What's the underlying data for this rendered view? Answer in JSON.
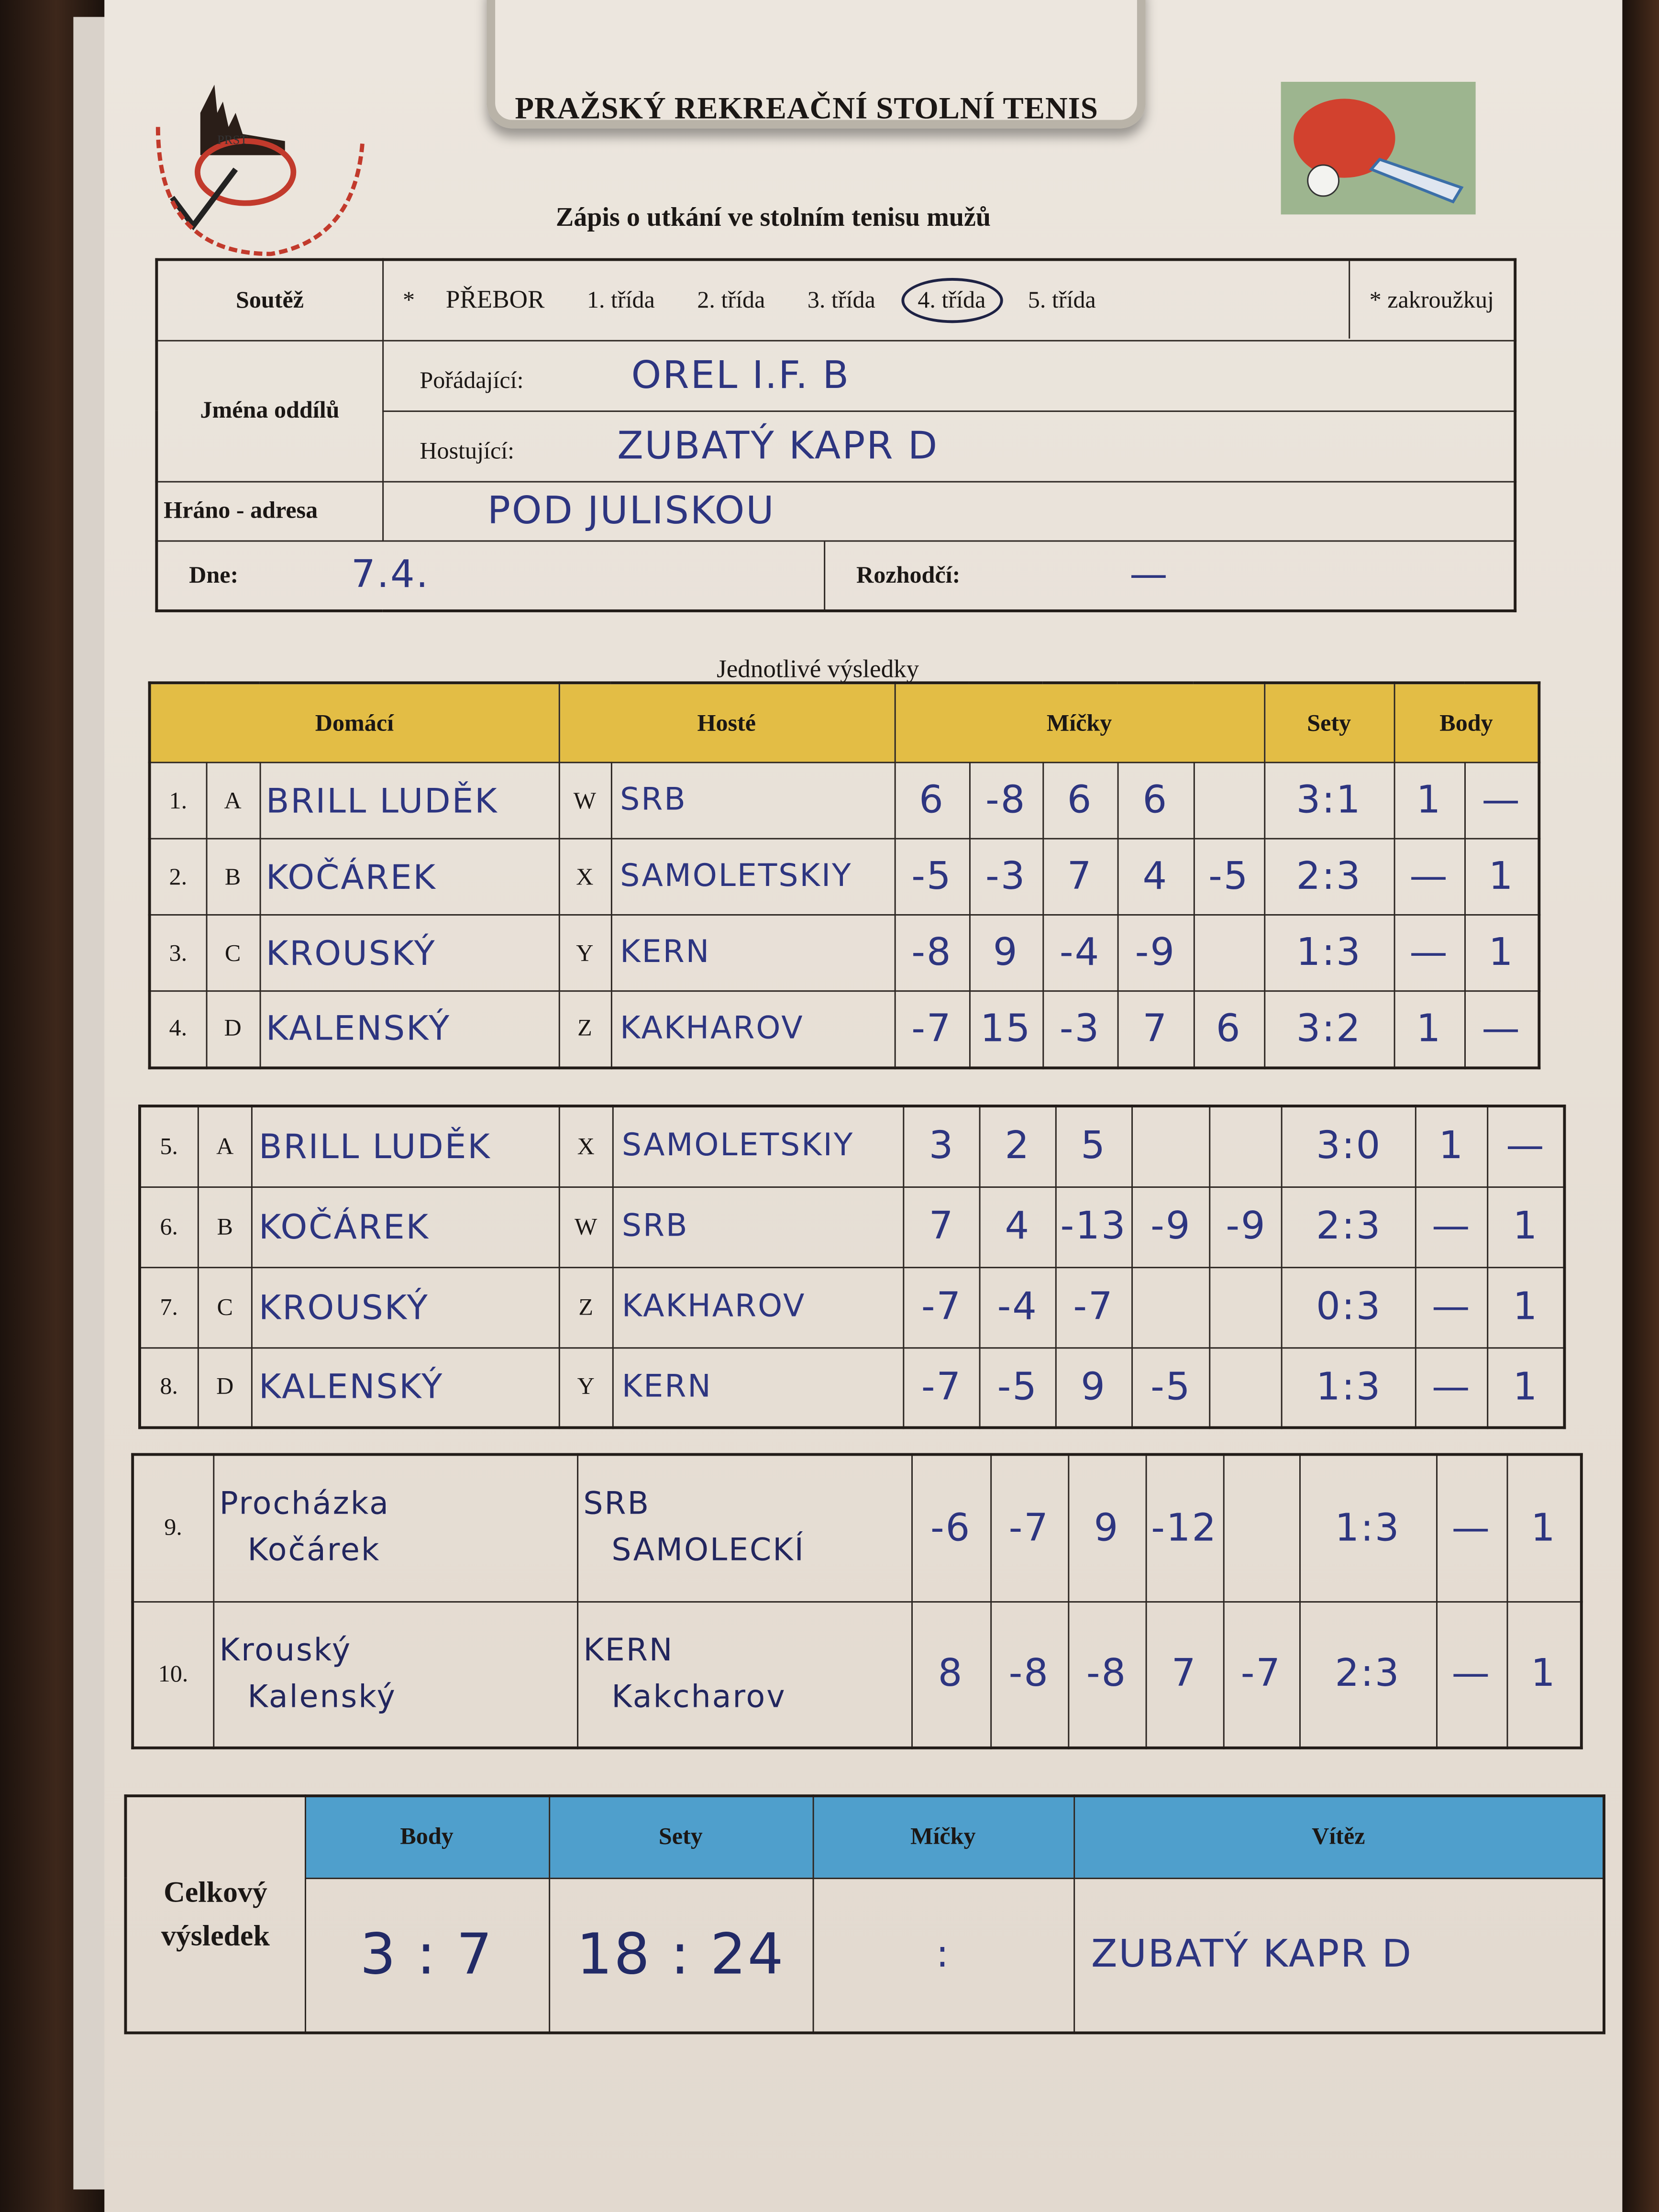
{
  "header": {
    "title": "PRAŽSKÝ REKREAČNÍ STOLNÍ TENIS",
    "subtitle": "Zápis o utkání ve stolním tenisu mužů",
    "logo_text": "PRST PRAŽSKÝ REKREAČNÍ STOLNÍ TENIS",
    "logo_colors": {
      "red": "#c23a2c",
      "green": "#4a7a3a"
    }
  },
  "info": {
    "competition_label": "Soutěž",
    "competition_star": "*",
    "options": [
      "PŘEBOR",
      "1. třída",
      "2. třída",
      "3. třída",
      "4. třída",
      "5. třída"
    ],
    "selected_option": "4. třída",
    "circle_note": "* zakroužkuj",
    "teams_label": "Jména oddílů",
    "home_label": "Pořádající:",
    "home_value": "OREL I.F. B",
    "guest_label": "Hostující:",
    "guest_value": "ZUBATÝ KAPR D",
    "venue_label": "Hráno - adresa",
    "venue_value": "POD JULISKOU",
    "date_label": "Dne:",
    "date_value": "7.4.",
    "referee_label": "Rozhodčí:",
    "referee_value": "—"
  },
  "results": {
    "section_title": "Jednotlivé výsledky",
    "headers": {
      "home": "Domácí",
      "guest": "Hosté",
      "balls": "Míčky",
      "sets": "Sety",
      "points": "Body"
    },
    "header_color": "#e3bd45",
    "block1": [
      {
        "no": "1.",
        "hl": "A",
        "home": "BRILL LUDĚK",
        "gl": "W",
        "guest": "SRB",
        "balls": [
          "6",
          "-8",
          "6",
          "6",
          ""
        ],
        "sets": "3:1",
        "hp": "1",
        "gp": "—"
      },
      {
        "no": "2.",
        "hl": "B",
        "home": "KOČÁREK",
        "gl": "X",
        "guest": "SAMOLETSKIY",
        "balls": [
          "-5",
          "-3",
          "7",
          "4",
          "-5"
        ],
        "sets": "2:3",
        "hp": "—",
        "gp": "1"
      },
      {
        "no": "3.",
        "hl": "C",
        "home": "KROUSKÝ",
        "gl": "Y",
        "guest": "KERN",
        "balls": [
          "-8",
          "9",
          "-4",
          "-9",
          ""
        ],
        "sets": "1:3",
        "hp": "—",
        "gp": "1"
      },
      {
        "no": "4.",
        "hl": "D",
        "home": "KALENSKÝ",
        "gl": "Z",
        "guest": "KAKHAROV",
        "balls": [
          "-7",
          "15",
          "-3",
          "7",
          "6"
        ],
        "sets": "3:2",
        "hp": "1",
        "gp": "—"
      }
    ],
    "block2": [
      {
        "no": "5.",
        "hl": "A",
        "home": "BRILL LUDĚK",
        "gl": "X",
        "guest": "SAMOLETSKIY",
        "balls": [
          "3",
          "2",
          "5",
          "",
          ""
        ],
        "sets": "3:0",
        "hp": "1",
        "gp": "—"
      },
      {
        "no": "6.",
        "hl": "B",
        "home": "KOČÁREK",
        "gl": "W",
        "guest": "SRB",
        "balls": [
          "7",
          "4",
          "-13",
          "-9",
          "-9"
        ],
        "sets": "2:3",
        "hp": "—",
        "gp": "1"
      },
      {
        "no": "7.",
        "hl": "C",
        "home": "KROUSKÝ",
        "gl": "Z",
        "guest": "KAKHAROV",
        "balls": [
          "-7",
          "-4",
          "-7",
          "",
          ""
        ],
        "sets": "0:3",
        "hp": "—",
        "gp": "1"
      },
      {
        "no": "8.",
        "hl": "D",
        "home": "KALENSKÝ",
        "gl": "Y",
        "guest": "KERN",
        "balls": [
          "-7",
          "-5",
          "9",
          "-5",
          ""
        ],
        "sets": "1:3",
        "hp": "—",
        "gp": "1"
      }
    ],
    "doubles": [
      {
        "no": "9.",
        "home": [
          "Procházka",
          "Kočárek"
        ],
        "guest": [
          "SRB",
          "SAMOLECKÍ"
        ],
        "balls": [
          "-6",
          "-7",
          "9",
          "-12",
          ""
        ],
        "sets": "1:3",
        "hp": "—",
        "gp": "1"
      },
      {
        "no": "10.",
        "home": [
          "Krouský",
          "Kalenský"
        ],
        "guest": [
          "KERN",
          "Kakcharov"
        ],
        "balls": [
          "8",
          "-8",
          "-8",
          "7",
          "-7"
        ],
        "sets": "2:3",
        "hp": "—",
        "gp": "1"
      }
    ]
  },
  "total": {
    "label": "Celkový výsledek",
    "header_color": "#4f9fcc",
    "points_label": "Body",
    "sets_label": "Sety",
    "balls_label": "Míčky",
    "winner_label": "Vítěz",
    "points_value": "3 : 7",
    "sets_value": "18 : 24",
    "balls_value": ":",
    "winner_value": "ZUBATÝ KAPR D"
  }
}
